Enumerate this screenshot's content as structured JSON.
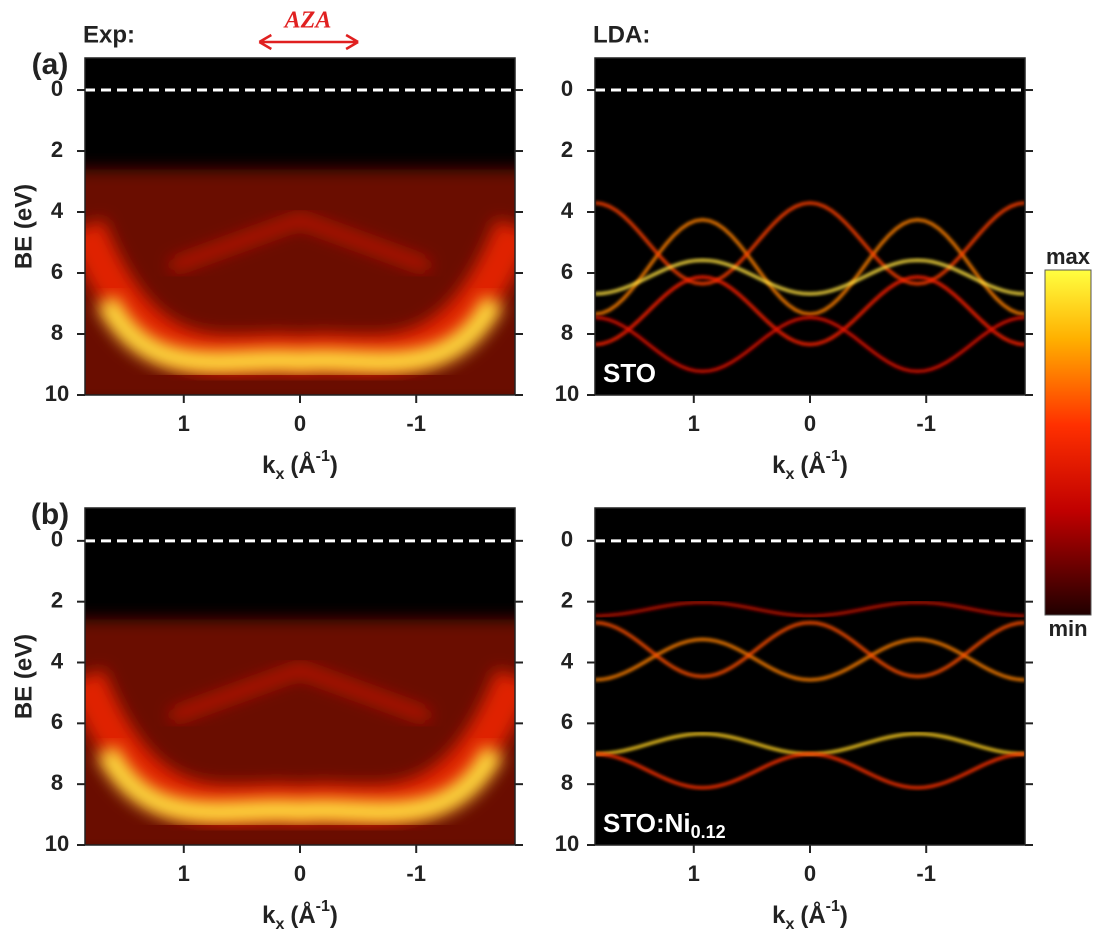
{
  "colorbar": {
    "max": "max",
    "min": "min"
  },
  "chart_data": [
    {
      "type": "heatmap",
      "panel_label": "(a)",
      "title": "Exp:",
      "annotation": "AZA",
      "xlabel": {
        "text": "k",
        "sub": "x",
        "unit": "(Å",
        "sup": "-1",
        "close": ")"
      },
      "ylabel": "BE (eV)",
      "xlim": [
        1.85,
        -1.85
      ],
      "xticks": [
        1,
        0,
        -1
      ],
      "ylim": [
        -1.05,
        10
      ],
      "y_inverted": true,
      "yticks": [
        0,
        2,
        4,
        6,
        8,
        10
      ],
      "reference_line": 0,
      "style": "exp"
    },
    {
      "type": "heatmap",
      "title": "LDA:",
      "label": {
        "text": "STO"
      },
      "xlabel": {
        "text": "k",
        "sub": "x",
        "unit": "(Å",
        "sup": "-1",
        "close": ")"
      },
      "xlim": [
        1.85,
        -1.85
      ],
      "xticks": [
        1,
        0,
        -1
      ],
      "ylim": [
        -1.05,
        10
      ],
      "y_inverted": true,
      "yticks": [
        0,
        2,
        4,
        6,
        8,
        10
      ],
      "reference_line": 0,
      "style": "lda1"
    },
    {
      "type": "heatmap",
      "panel_label": "(b)",
      "xlabel": {
        "text": "k",
        "sub": "x",
        "unit": "(Å",
        "sup": "-1",
        "close": ")"
      },
      "ylabel": "BE (eV)",
      "xlim": [
        1.85,
        -1.85
      ],
      "xticks": [
        1,
        0,
        -1
      ],
      "ylim": [
        -1.08,
        10
      ],
      "y_inverted": true,
      "yticks": [
        0,
        2,
        4,
        6,
        8,
        10
      ],
      "reference_line": 0,
      "style": "exp"
    },
    {
      "type": "heatmap",
      "label": {
        "text": "STO:Ni",
        "sub": "0.12"
      },
      "xlabel": {
        "text": "k",
        "sub": "x",
        "unit": "(Å",
        "sup": "-1",
        "close": ")"
      },
      "xlim": [
        1.85,
        -1.85
      ],
      "xticks": [
        1,
        0,
        -1
      ],
      "ylim": [
        -1.08,
        10
      ],
      "y_inverted": true,
      "yticks": [
        0,
        2,
        4,
        6,
        8,
        10
      ],
      "reference_line": 0,
      "style": "lda2"
    }
  ]
}
